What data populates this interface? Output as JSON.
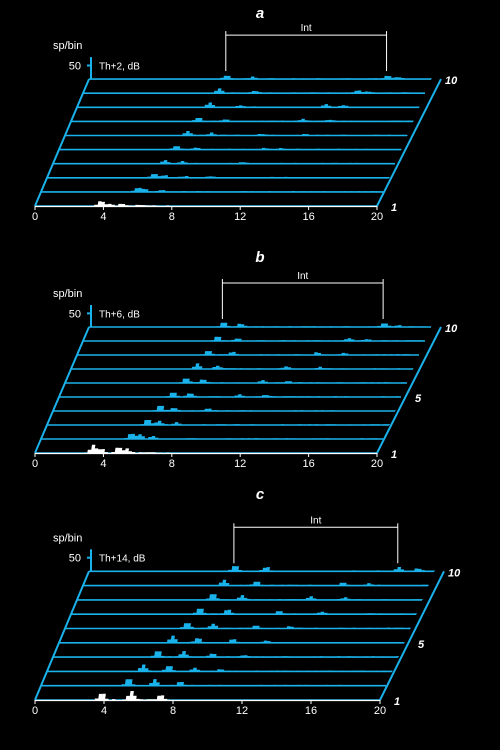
{
  "chart_data": [
    {
      "panel": "a",
      "type": "bar",
      "condition": "Th+2, dB",
      "ylabel": "sp/bin",
      "y_tick": 50,
      "xlim": [
        0,
        20
      ],
      "x_ticks": [
        0,
        4,
        8,
        12,
        16,
        20
      ],
      "interval_label": "Int",
      "interval_x": [
        8.0,
        17.4
      ],
      "trace_count": 10,
      "trace_labels": [
        "1",
        "10"
      ],
      "foreground_color": "#ffffff",
      "series_color": "#1ab2ea",
      "peak_values": {
        "1": [
          [
            3.8,
            18
          ],
          [
            4.3,
            7
          ],
          [
            5.0,
            6
          ],
          [
            6.0,
            4
          ]
        ],
        "2": [
          [
            5.6,
            15
          ],
          [
            6.0,
            9
          ],
          [
            7.0,
            5
          ]
        ],
        "3": [
          [
            6.2,
            14
          ],
          [
            6.8,
            8
          ],
          [
            8.0,
            5
          ],
          [
            9.5,
            4
          ]
        ],
        "4": [
          [
            6.5,
            13
          ],
          [
            7.5,
            7
          ],
          [
            11.0,
            4
          ]
        ],
        "5": [
          [
            6.8,
            14
          ],
          [
            8.0,
            7
          ],
          [
            12.0,
            5
          ],
          [
            13.0,
            4
          ]
        ],
        "6": [
          [
            7.1,
            14
          ],
          [
            8.5,
            8
          ],
          [
            11.5,
            5
          ],
          [
            14.0,
            6
          ]
        ],
        "7": [
          [
            7.4,
            15
          ],
          [
            9.0,
            7
          ],
          [
            13.5,
            9
          ],
          [
            15.0,
            5
          ]
        ],
        "8": [
          [
            7.7,
            16
          ],
          [
            9.5,
            7
          ],
          [
            14.5,
            10
          ],
          [
            15.5,
            6
          ]
        ],
        "9": [
          [
            7.9,
            15
          ],
          [
            10.0,
            7
          ],
          [
            16.0,
            8
          ],
          [
            16.5,
            5
          ]
        ],
        "10": [
          [
            8.0,
            14
          ],
          [
            9.5,
            7
          ],
          [
            17.4,
            12
          ],
          [
            18.0,
            5
          ]
        ]
      }
    },
    {
      "panel": "b",
      "type": "bar",
      "condition": "Th+6, dB",
      "ylabel": "sp/bin",
      "y_tick": 50,
      "xlim": [
        0,
        20
      ],
      "x_ticks": [
        0,
        4,
        8,
        12,
        16,
        20
      ],
      "interval_label": "Int",
      "interval_x": [
        7.8,
        17.2
      ],
      "trace_count": 10,
      "trace_labels": [
        "1",
        "5",
        "10"
      ],
      "foreground_color": "#ffffff",
      "series_color": "#1ab2ea",
      "peak_values": {
        "1": [
          [
            3.3,
            28
          ],
          [
            3.8,
            15
          ],
          [
            4.8,
            22
          ],
          [
            5.3,
            14
          ]
        ],
        "2": [
          [
            5.2,
            22
          ],
          [
            5.7,
            16
          ],
          [
            6.5,
            10
          ]
        ],
        "3": [
          [
            5.8,
            21
          ],
          [
            6.5,
            14
          ],
          [
            7.5,
            8
          ]
        ],
        "4": [
          [
            6.2,
            20
          ],
          [
            7.0,
            12
          ],
          [
            9.0,
            8
          ]
        ],
        "5": [
          [
            6.6,
            19
          ],
          [
            7.6,
            12
          ],
          [
            10.5,
            8
          ],
          [
            12.0,
            5
          ]
        ],
        "6": [
          [
            7.0,
            18
          ],
          [
            8.0,
            12
          ],
          [
            11.5,
            8
          ],
          [
            13.0,
            5
          ]
        ],
        "7": [
          [
            7.3,
            18
          ],
          [
            8.5,
            11
          ],
          [
            12.5,
            8
          ],
          [
            14.5,
            6
          ]
        ],
        "8": [
          [
            7.6,
            17
          ],
          [
            9.0,
            10
          ],
          [
            14.0,
            9
          ],
          [
            15.5,
            6
          ]
        ],
        "9": [
          [
            7.8,
            17
          ],
          [
            9.0,
            10
          ],
          [
            15.5,
            10
          ],
          [
            16.5,
            6
          ]
        ],
        "10": [
          [
            7.8,
            16
          ],
          [
            8.8,
            12
          ],
          [
            17.2,
            14
          ],
          [
            18.0,
            6
          ]
        ]
      }
    },
    {
      "panel": "c",
      "type": "bar",
      "condition": "Th+14, dB",
      "ylabel": "sp/bin",
      "y_tick": 50,
      "xlim": [
        0,
        20
      ],
      "x_ticks": [
        0,
        4,
        8,
        12,
        16,
        20
      ],
      "interval_label": "Int",
      "interval_x": [
        8.4,
        17.9
      ],
      "trace_count": 10,
      "trace_labels": [
        "1",
        "5",
        "10"
      ],
      "foreground_color": "#ffffff",
      "series_color": "#1ab2ea",
      "peak_values": {
        "1": [
          [
            3.8,
            26
          ],
          [
            5.5,
            30
          ],
          [
            7.2,
            18
          ]
        ],
        "2": [
          [
            5.0,
            26
          ],
          [
            6.5,
            22
          ],
          [
            8.0,
            14
          ]
        ],
        "3": [
          [
            5.5,
            25
          ],
          [
            7.0,
            20
          ],
          [
            8.5,
            13
          ],
          [
            10.0,
            8
          ]
        ],
        "4": [
          [
            6.0,
            24
          ],
          [
            7.5,
            19
          ],
          [
            9.2,
            12
          ],
          [
            11.0,
            7
          ]
        ],
        "5": [
          [
            6.5,
            24
          ],
          [
            8.0,
            18
          ],
          [
            10.0,
            12
          ],
          [
            12.0,
            7
          ]
        ],
        "6": [
          [
            7.0,
            23
          ],
          [
            8.5,
            17
          ],
          [
            11.0,
            11
          ],
          [
            13.0,
            7
          ]
        ],
        "7": [
          [
            7.4,
            23
          ],
          [
            9.0,
            17
          ],
          [
            12.0,
            11
          ],
          [
            14.5,
            7
          ]
        ],
        "8": [
          [
            7.8,
            22
          ],
          [
            9.5,
            16
          ],
          [
            13.5,
            11
          ],
          [
            15.5,
            8
          ]
        ],
        "9": [
          [
            8.1,
            21
          ],
          [
            10.0,
            16
          ],
          [
            15.0,
            12
          ],
          [
            16.5,
            8
          ]
        ],
        "10": [
          [
            8.4,
            21
          ],
          [
            10.2,
            16
          ],
          [
            17.9,
            14
          ],
          [
            19.0,
            9
          ]
        ]
      }
    }
  ]
}
